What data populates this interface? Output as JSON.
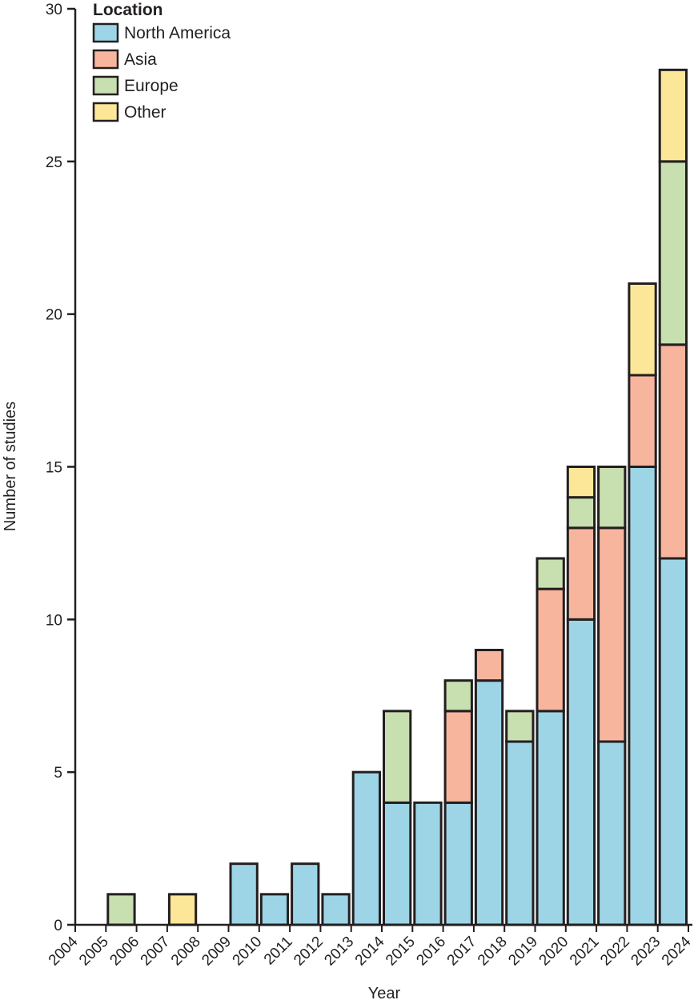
{
  "chart_data": {
    "type": "bar",
    "stacked": true,
    "xlabel": "Year",
    "ylabel": "Number of studies",
    "ylim": [
      0,
      30
    ],
    "yticks": [
      0,
      5,
      10,
      15,
      20,
      25,
      30
    ],
    "grid": false,
    "legend": {
      "title": "Location",
      "position": "top-left"
    },
    "x_ticks": [
      "2004",
      "2005",
      "2006",
      "2007",
      "2008",
      "2009",
      "2010",
      "2011",
      "2012",
      "2013",
      "2014",
      "2015",
      "2016",
      "2017",
      "2018",
      "2019",
      "2020",
      "2021",
      "2022",
      "2023",
      "2024"
    ],
    "categories": [
      "2004",
      "2005",
      "2006",
      "2007",
      "2008",
      "2009",
      "2010",
      "2011",
      "2012",
      "2013",
      "2014",
      "2015",
      "2016",
      "2017",
      "2018",
      "2019",
      "2020",
      "2021",
      "2022",
      "2023"
    ],
    "series": [
      {
        "name": "North America",
        "color": "#9dd5e6",
        "values": [
          0,
          0,
          0,
          0,
          0,
          2,
          1,
          2,
          1,
          5,
          4,
          4,
          4,
          8,
          6,
          7,
          10,
          6,
          15,
          12
        ]
      },
      {
        "name": "Asia",
        "color": "#f8b59e",
        "values": [
          0,
          0,
          0,
          0,
          0,
          0,
          0,
          0,
          0,
          0,
          0,
          0,
          3,
          1,
          0,
          4,
          3,
          7,
          3,
          7
        ]
      },
      {
        "name": "Europe",
        "color": "#c8dfb0",
        "values": [
          0,
          1,
          0,
          0,
          0,
          0,
          0,
          0,
          0,
          0,
          3,
          0,
          1,
          0,
          1,
          1,
          1,
          2,
          0,
          6
        ]
      },
      {
        "name": "Other",
        "color": "#fbe797",
        "values": [
          0,
          0,
          0,
          1,
          0,
          0,
          0,
          0,
          0,
          0,
          0,
          0,
          0,
          0,
          0,
          0,
          1,
          0,
          3,
          3
        ]
      }
    ]
  }
}
